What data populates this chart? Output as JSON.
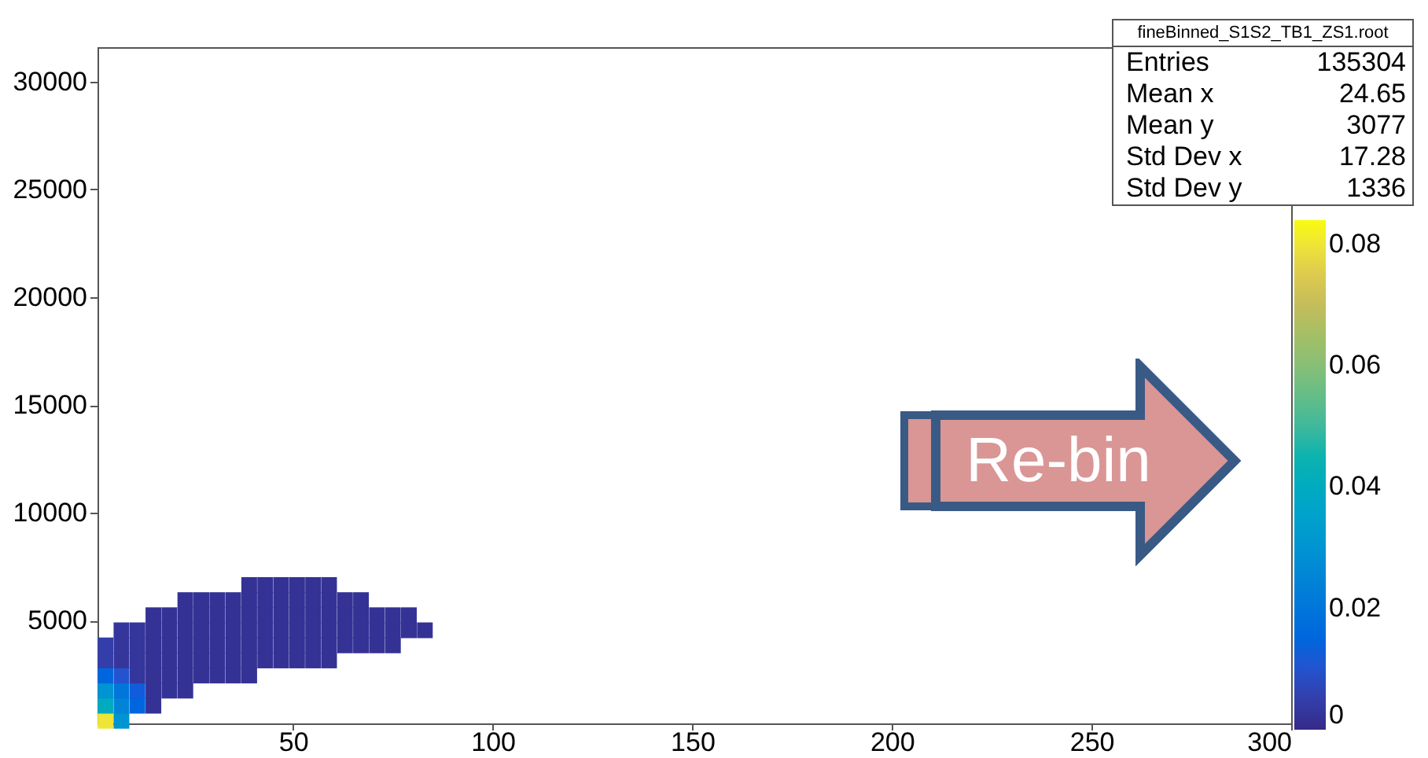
{
  "chart_data": {
    "type": "scatter",
    "marker": "square",
    "x": [
      3,
      3,
      3,
      3,
      3,
      3,
      7,
      7,
      7,
      7,
      7,
      7,
      7,
      11,
      11,
      11,
      11,
      11,
      11,
      15,
      15,
      15,
      15,
      15,
      15,
      15,
      19,
      19,
      19,
      19,
      19,
      19,
      23,
      23,
      23,
      23,
      23,
      23,
      23,
      27,
      27,
      27,
      27,
      27,
      27,
      31,
      31,
      31,
      31,
      31,
      31,
      35,
      35,
      35,
      35,
      35,
      35,
      39,
      39,
      39,
      39,
      39,
      39,
      39,
      43,
      43,
      43,
      43,
      43,
      43,
      47,
      47,
      47,
      47,
      47,
      47,
      51,
      51,
      51,
      51,
      51,
      51,
      55,
      55,
      55,
      55,
      55,
      55,
      59,
      59,
      59,
      59,
      59,
      59,
      63,
      63,
      63,
      63,
      67,
      67,
      67,
      67,
      71,
      71,
      71,
      75,
      75,
      75,
      79,
      79,
      83
    ],
    "values": [
      350,
      1050,
      1750,
      2450,
      3150,
      3850,
      350,
      1050,
      1750,
      2450,
      3150,
      3850,
      4550,
      1050,
      1750,
      2450,
      3150,
      3850,
      4550,
      1050,
      1750,
      2450,
      3150,
      3850,
      4550,
      5250,
      1750,
      2450,
      3150,
      3850,
      4550,
      5250,
      1750,
      2450,
      3150,
      3850,
      4550,
      5250,
      5950,
      2450,
      3150,
      3850,
      4550,
      5250,
      5950,
      2450,
      3150,
      3850,
      4550,
      5250,
      5950,
      2450,
      3150,
      3850,
      4550,
      5250,
      5950,
      2450,
      3150,
      3850,
      4550,
      5250,
      5950,
      6650,
      3150,
      3850,
      4550,
      5250,
      5950,
      6650,
      3150,
      3850,
      4550,
      5250,
      5950,
      6650,
      3150,
      3850,
      4550,
      5250,
      5950,
      6650,
      3150,
      3850,
      4550,
      5250,
      5950,
      6650,
      3150,
      3850,
      4550,
      5250,
      5950,
      6650,
      3850,
      4550,
      5250,
      5950,
      3850,
      4550,
      5250,
      5950,
      3850,
      4550,
      5250,
      3850,
      4550,
      5250,
      4550,
      5250,
      4550
    ],
    "cvalues": [
      0.08,
      0.04,
      0.03,
      0.015,
      0.005,
      0.005,
      0.03,
      0.025,
      0.02,
      0.01,
      0.003,
      0.003,
      0.003,
      0.015,
      0.012,
      0.003,
      0.003,
      0.003,
      0.003,
      0.002,
      0.002,
      0.002,
      0.002,
      0.002,
      0.002,
      0.002,
      0.002,
      0.002,
      0.002,
      0.002,
      0.002,
      0.002,
      0.002,
      0.002,
      0.002,
      0.002,
      0.002,
      0.002,
      0.002,
      0.002,
      0.002,
      0.002,
      0.002,
      0.002,
      0.002,
      0.002,
      0.002,
      0.002,
      0.002,
      0.002,
      0.002,
      0.002,
      0.002,
      0.002,
      0.002,
      0.002,
      0.002,
      0.002,
      0.002,
      0.002,
      0.002,
      0.002,
      0.002,
      0.002,
      0.002,
      0.002,
      0.002,
      0.002,
      0.002,
      0.002,
      0.002,
      0.002,
      0.002,
      0.002,
      0.002,
      0.002,
      0.002,
      0.002,
      0.002,
      0.002,
      0.002,
      0.002,
      0.002,
      0.002,
      0.002,
      0.002,
      0.002,
      0.002,
      0.002,
      0.002,
      0.002,
      0.002,
      0.002,
      0.002,
      0.002,
      0.002,
      0.002,
      0.002,
      0.002,
      0.002,
      0.002,
      0.002,
      0.002,
      0.002,
      0.002,
      0.002,
      0.002,
      0.002,
      0.002,
      0.002,
      0.002
    ],
    "xlim": [
      1,
      300
    ],
    "xticks": [
      50,
      100,
      150,
      200,
      250,
      300
    ],
    "ylim": [
      230,
      31600
    ],
    "yticks": [
      5000,
      10000,
      15000,
      20000,
      25000,
      30000
    ],
    "clim": [
      0,
      0.084
    ],
    "cticks": [
      0,
      0.02,
      0.04,
      0.06,
      0.08
    ],
    "annotations": [
      "fineBinned_S1S2_TB1_ZS1.root",
      "Entries 135304",
      "Mean x 24.65",
      "Mean y 3077",
      "Std Dev x 17.28",
      "Std Dev y 1336",
      "Re-bin"
    ]
  }
}
